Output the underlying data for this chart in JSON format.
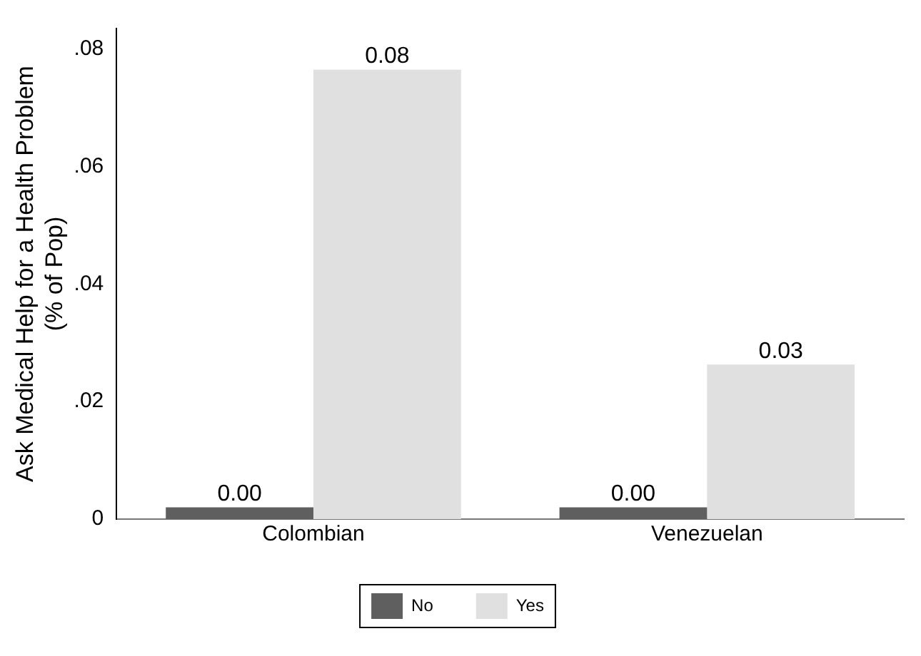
{
  "chart_data": {
    "type": "bar",
    "ylabel": "Ask Medical Help for a Health Problem\n(% of Pop)",
    "categories": [
      "Colombian",
      "Venezuelan"
    ],
    "series": [
      {
        "name": "No",
        "color": "#5f5f5f",
        "values": [
          0.002,
          0.002
        ],
        "value_labels": [
          "0.00",
          "0.00"
        ]
      },
      {
        "name": "Yes",
        "color": "#e0e0e0",
        "values": [
          0.0765,
          0.0263
        ],
        "value_labels": [
          "0.08",
          "0.03"
        ]
      }
    ],
    "ylim": [
      0,
      0.0835
    ],
    "yticks": [
      {
        "value": 0,
        "label": "0"
      },
      {
        "value": 0.02,
        "label": ".02"
      },
      {
        "value": 0.04,
        "label": ".04"
      },
      {
        "value": 0.06,
        "label": ".06"
      },
      {
        "value": 0.08,
        "label": ".08"
      }
    ],
    "grid": false,
    "legend": "bottom"
  }
}
